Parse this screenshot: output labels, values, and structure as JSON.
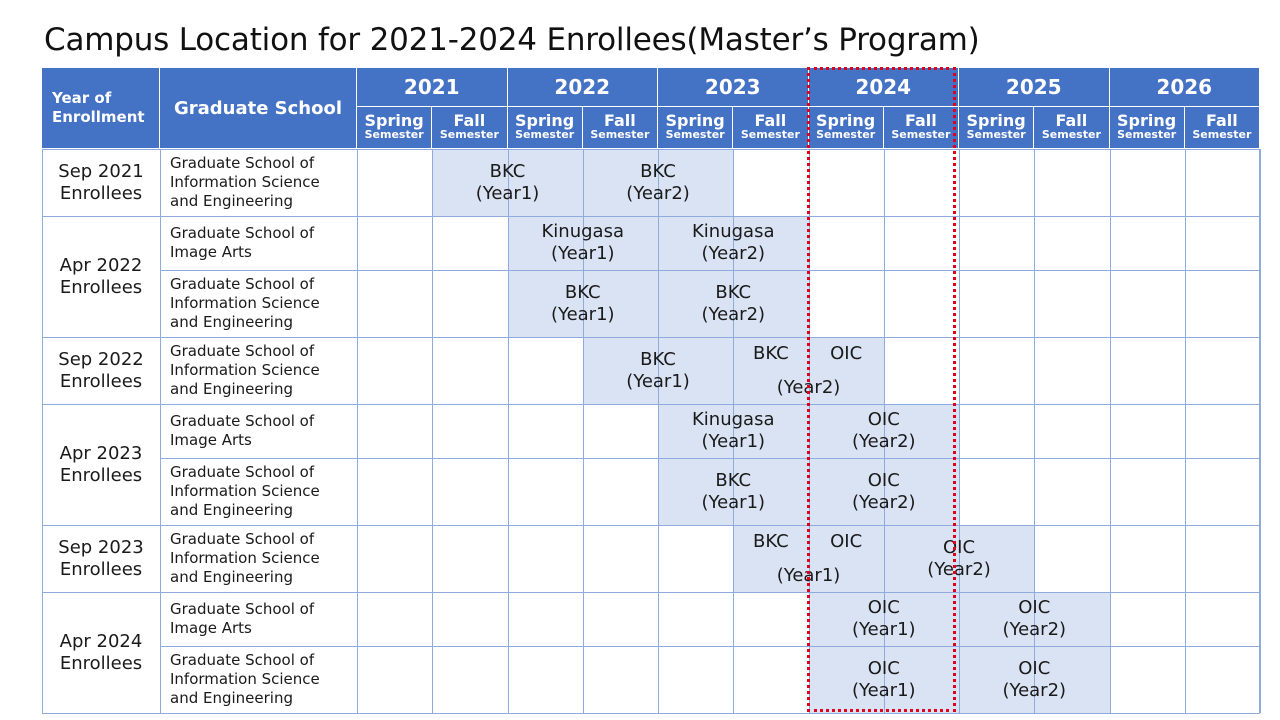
{
  "title": "Campus Location for 2021-2024 Enrollees(Master’s Program)",
  "header": {
    "year_of_enrollment": "Year of Enrollment",
    "graduate_school": "Graduate School",
    "years": [
      "2021",
      "2022",
      "2023",
      "2024",
      "2025",
      "2026"
    ],
    "spring_top": "Spring",
    "fall_top": "Fall",
    "semester": "Semester"
  },
  "highlight": {
    "year": "2024",
    "color": "#e0001b"
  },
  "colors": {
    "header_bg": "#4472c4",
    "period_fill": "#dae3f3",
    "grid_line": "#8faadc"
  },
  "groups": [
    {
      "label": "Sep 2021\nEnrollees",
      "rows": [
        0
      ]
    },
    {
      "label": "Apr 2022\nEnrollees",
      "rows": [
        1,
        2
      ]
    },
    {
      "label": "Sep 2022\nEnrollees",
      "rows": [
        3
      ]
    },
    {
      "label": "Apr 2023\nEnrollees",
      "rows": [
        4,
        5
      ]
    },
    {
      "label": "Sep 2023\nEnrollees",
      "rows": [
        6
      ]
    },
    {
      "label": "Apr 2024\nEnrollees",
      "rows": [
        7,
        8
      ]
    }
  ],
  "rows": [
    {
      "school": "Graduate School of\nInformation Science\nand Engineering",
      "periods": [
        {
          "text": "BKC\n(Year1)",
          "start": 1,
          "end": 2
        },
        {
          "text": "BKC\n(Year2)",
          "start": 3,
          "end": 4
        }
      ]
    },
    {
      "school": "Graduate School of\nImage Arts",
      "periods": [
        {
          "text": "Kinugasa\n(Year1)",
          "start": 2,
          "end": 3
        },
        {
          "text": "Kinugasa\n(Year2)",
          "start": 4,
          "end": 5
        }
      ]
    },
    {
      "school": "Graduate School of\nInformation Science\nand Engineering",
      "periods": [
        {
          "text": "BKC\n(Year1)",
          "start": 2,
          "end": 3
        },
        {
          "text": "BKC\n(Year2)",
          "start": 4,
          "end": 5
        }
      ]
    },
    {
      "school": "Graduate School of\nInformation Science\nand Engineering",
      "periods": [
        {
          "text": "BKC\n(Year1)",
          "start": 3,
          "end": 4
        },
        {
          "text": "",
          "start": 5,
          "end": 6
        }
      ],
      "labels": [
        {
          "text": "BKC",
          "col": 5.5,
          "line": 0
        },
        {
          "text": "OIC",
          "col": 6.5,
          "line": 0
        },
        {
          "text": "(Year2)",
          "col": 6.0,
          "line": 1
        }
      ]
    },
    {
      "school": "Graduate School of\nImage Arts",
      "periods": [
        {
          "text": "Kinugasa\n(Year1)",
          "start": 4,
          "end": 5
        },
        {
          "text": "OIC\n(Year2)",
          "start": 6,
          "end": 7
        }
      ]
    },
    {
      "school": "Graduate School of\nInformation Science\nand Engineering",
      "periods": [
        {
          "text": "BKC\n(Year1)",
          "start": 4,
          "end": 5
        },
        {
          "text": "OIC\n(Year2)",
          "start": 6,
          "end": 7
        }
      ]
    },
    {
      "school": "Graduate School of\nInformation Science\nand Engineering",
      "periods": [
        {
          "text": "",
          "start": 5,
          "end": 6
        },
        {
          "text": "OIC\n(Year2)",
          "start": 7,
          "end": 8
        }
      ],
      "labels": [
        {
          "text": "BKC",
          "col": 5.5,
          "line": 0
        },
        {
          "text": "OIC",
          "col": 6.5,
          "line": 0
        },
        {
          "text": "(Year1)",
          "col": 6.0,
          "line": 1
        }
      ]
    },
    {
      "school": "Graduate School of\nImage Arts",
      "periods": [
        {
          "text": "OIC\n(Year1)",
          "start": 6,
          "end": 7
        },
        {
          "text": "OIC\n(Year2)",
          "start": 8,
          "end": 9
        }
      ]
    },
    {
      "school": "Graduate School of\nInformation Science\nand Engineering",
      "periods": [
        {
          "text": "OIC\n(Year1)",
          "start": 6,
          "end": 7
        },
        {
          "text": "OIC\n(Year2)",
          "start": 8,
          "end": 9
        }
      ]
    }
  ]
}
